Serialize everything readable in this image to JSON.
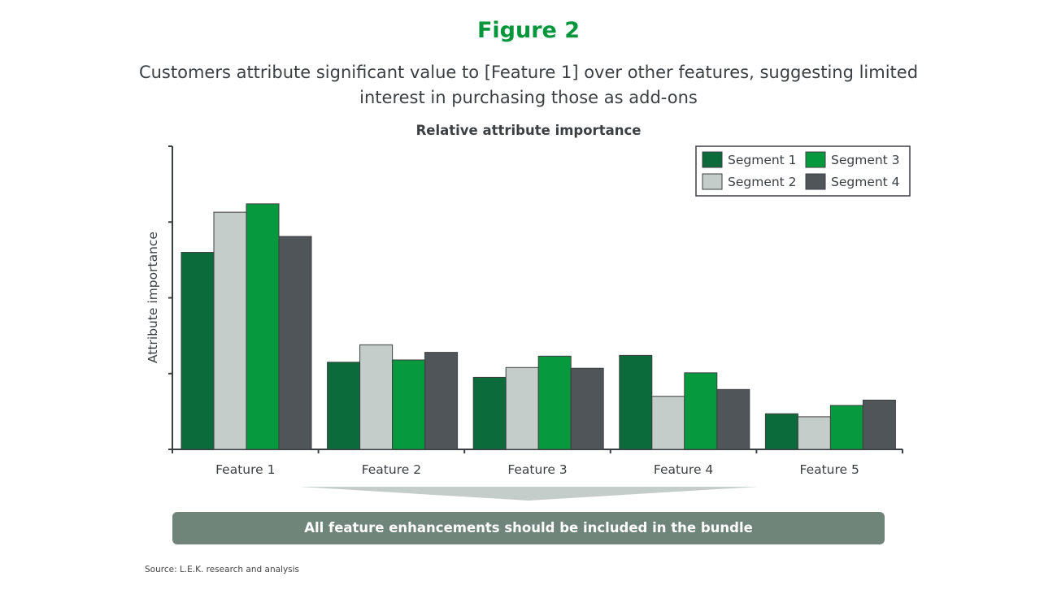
{
  "figure_label": "Figure 2",
  "subtitle": "Customers attribute significant value to [Feature 1] over other features, suggesting limited interest in purchasing those as add-ons",
  "conclusion": "All feature enhancements should be included in the bundle",
  "source": "Source:   L.E.K. research and analysis",
  "chart_data": {
    "type": "bar",
    "title": "Relative attribute importance",
    "xlabel": "",
    "ylabel": "Attribute importance",
    "ylim": [
      0,
      4
    ],
    "y_tick_labels_shown": false,
    "grid": false,
    "legend_position": "top-right",
    "categories": [
      "Feature 1",
      "Feature 2",
      "Feature 3",
      "Feature 4",
      "Feature 5"
    ],
    "series": [
      {
        "name": "Segment 1",
        "color": "#0b6b3a",
        "values": [
          2.6,
          1.15,
          0.95,
          1.24,
          0.47
        ]
      },
      {
        "name": "Segment 2",
        "color": "#c4cdc9",
        "values": [
          3.13,
          1.38,
          1.08,
          0.7,
          0.43
        ]
      },
      {
        "name": "Segment 3",
        "color": "#06993e",
        "values": [
          3.24,
          1.18,
          1.23,
          1.01,
          0.58
        ]
      },
      {
        "name": "Segment 4",
        "color": "#50555a",
        "values": [
          2.81,
          1.28,
          1.07,
          0.79,
          0.65
        ]
      }
    ]
  }
}
